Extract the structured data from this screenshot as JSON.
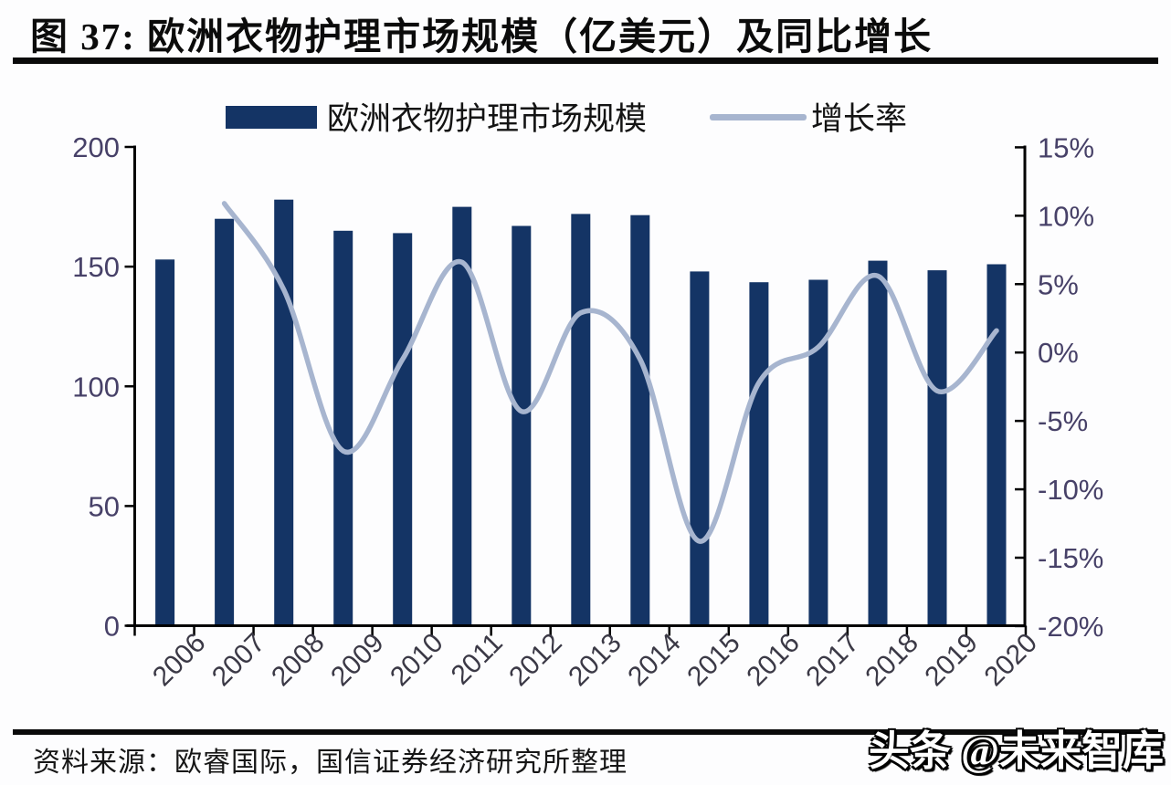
{
  "header": {
    "title": "图 37: 欧洲衣物护理市场规模（亿美元）及同比增长"
  },
  "legend": {
    "items": [
      {
        "label": "欧洲衣物护理市场规模",
        "marker": "bar-swatch"
      },
      {
        "label": "增长率",
        "marker": "line-swatch"
      }
    ]
  },
  "chart_data": {
    "type": "bar+line",
    "title": "欧洲衣物护理市场规模（亿美元）及同比增长",
    "categories": [
      "2006",
      "2007",
      "2008",
      "2009",
      "2010",
      "2011",
      "2012",
      "2013",
      "2014",
      "2015",
      "2016",
      "2017",
      "2018",
      "2019",
      "2020"
    ],
    "series": [
      {
        "name": "欧洲衣物护理市场规模",
        "type": "bar",
        "axis": "left",
        "unit": "亿美元",
        "values": [
          153,
          170,
          178,
          165,
          164,
          175,
          167,
          172,
          171.5,
          148,
          143.5,
          144.5,
          152.5,
          148.5,
          151
        ]
      },
      {
        "name": "增长率",
        "type": "line",
        "axis": "right",
        "unit": "percent",
        "values": [
          null,
          10.9,
          4.6,
          -7.2,
          -0.5,
          6.6,
          -4.3,
          2.9,
          -0.5,
          -13.8,
          -2.2,
          0.4,
          5.6,
          -2.8,
          1.6
        ]
      }
    ],
    "left_axis": {
      "ticks": [
        "200",
        "150",
        "100",
        "50",
        "0"
      ],
      "tick_values": [
        200,
        150,
        100,
        50,
        0
      ],
      "min": 0,
      "max": 200
    },
    "right_axis": {
      "ticks": [
        "15%",
        "10%",
        "5%",
        "0%",
        "-5%",
        "-10%",
        "-15%",
        "-20%"
      ],
      "tick_values": [
        15,
        10,
        5,
        0,
        -5,
        -10,
        -15,
        -20
      ],
      "min": -20,
      "max": 15
    },
    "grid": false,
    "legend_position": "top"
  },
  "colors": {
    "bar": "#143465",
    "line": "#a7b5cf",
    "axis_line": "#000000",
    "value_axis_label": "#474168",
    "category_axis_label": "#3b3946",
    "title_text": "#0b0b0b",
    "rule": "#0a0a0a"
  },
  "footer": {
    "source": "资料来源：欧睿国际，国信证券经济研究所整理",
    "watermark": "头条 @未来智库"
  }
}
